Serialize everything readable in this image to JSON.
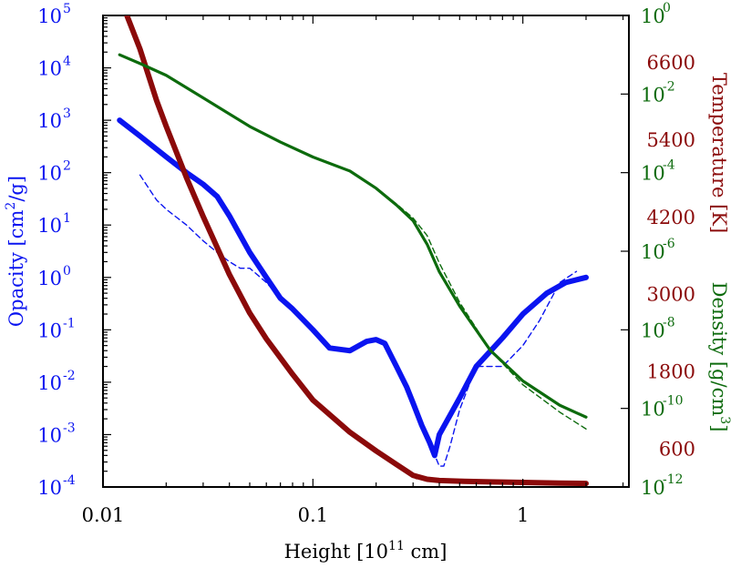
{
  "chart_data": {
    "type": "line",
    "xlabel_main": "Height [10",
    "xlabel_sup": "11",
    "xlabel_tail": " cm]",
    "x_scale": "log",
    "xlim": [
      0.01,
      3.2
    ],
    "x_ticks": [
      {
        "value": 0.01,
        "label": "0.01"
      },
      {
        "value": 0.1,
        "label": "0.1"
      },
      {
        "value": 1,
        "label": "1"
      }
    ],
    "axes": {
      "opacity": {
        "label_main": "Opacity [cm",
        "label_sup": "2",
        "label_tail": "/g]",
        "color": "#0a14f0",
        "scale": "log",
        "ylim": [
          0.0001,
          100000
        ],
        "ticks": [
          {
            "value": 0.0001,
            "base": "10",
            "exp": "-4"
          },
          {
            "value": 0.001,
            "base": "10",
            "exp": "-3"
          },
          {
            "value": 0.01,
            "base": "10",
            "exp": "-2"
          },
          {
            "value": 0.1,
            "base": "10",
            "exp": "-1"
          },
          {
            "value": 1,
            "base": "10",
            "exp": "0"
          },
          {
            "value": 10,
            "base": "10",
            "exp": "1"
          },
          {
            "value": 100,
            "base": "10",
            "exp": "2"
          },
          {
            "value": 1000,
            "base": "10",
            "exp": "3"
          },
          {
            "value": 10000,
            "base": "10",
            "exp": "4"
          },
          {
            "value": 100000,
            "base": "10",
            "exp": "5"
          }
        ]
      },
      "temperature": {
        "label": "Temperature [K]",
        "color": "#8b0a0a",
        "scale": "linear",
        "ylim": [
          0,
          7320
        ],
        "ticks": [
          {
            "value": 600,
            "label": "600"
          },
          {
            "value": 1800,
            "label": "1800"
          },
          {
            "value": 3000,
            "label": "3000"
          },
          {
            "value": 4200,
            "label": "4200"
          },
          {
            "value": 5400,
            "label": "5400"
          },
          {
            "value": 6600,
            "label": "6600"
          }
        ]
      },
      "density": {
        "label_main": "Density [g/cm",
        "label_sup": "3",
        "label_tail": "]",
        "color": "#0d6b0d",
        "scale": "log",
        "ylim": [
          1e-12,
          1
        ],
        "ticks": [
          {
            "value": 1e-12,
            "base": "10",
            "exp": "-12"
          },
          {
            "value": 1e-10,
            "base": "10",
            "exp": "-10"
          },
          {
            "value": 1e-08,
            "base": "10",
            "exp": "-8"
          },
          {
            "value": 1e-06,
            "base": "10",
            "exp": "-6"
          },
          {
            "value": 0.0001,
            "base": "10",
            "exp": "-4"
          },
          {
            "value": 0.01,
            "base": "10",
            "exp": "-2"
          },
          {
            "value": 1,
            "base": "10",
            "exp": "0"
          }
        ]
      }
    },
    "series": [
      {
        "axis": "opacity",
        "style": "solid",
        "weight": "thick",
        "x": [
          0.012,
          0.015,
          0.02,
          0.025,
          0.03,
          0.035,
          0.04,
          0.05,
          0.06,
          0.07,
          0.08,
          0.1,
          0.12,
          0.15,
          0.18,
          0.2,
          0.22,
          0.25,
          0.28,
          0.3,
          0.33,
          0.36,
          0.38,
          0.4,
          0.5,
          0.6,
          0.8,
          1.0,
          1.3,
          1.6,
          2.0
        ],
        "y": [
          1000,
          500,
          200,
          100,
          60,
          35,
          15,
          3,
          1.0,
          0.4,
          0.25,
          0.1,
          0.045,
          0.04,
          0.06,
          0.065,
          0.055,
          0.02,
          0.008,
          0.004,
          0.0015,
          0.0007,
          0.0004,
          0.001,
          0.005,
          0.02,
          0.07,
          0.2,
          0.5,
          0.8,
          1.0
        ]
      },
      {
        "axis": "opacity",
        "style": "dashed",
        "weight": "thin",
        "x": [
          0.015,
          0.018,
          0.02,
          0.025,
          0.03,
          0.035,
          0.04,
          0.045,
          0.05,
          0.06,
          0.07,
          0.08,
          0.1,
          0.12,
          0.15,
          0.18,
          0.2,
          0.22,
          0.25,
          0.28,
          0.3,
          0.35,
          0.4,
          0.42,
          0.45,
          0.5,
          0.6,
          0.7,
          0.8,
          1.0,
          1.2,
          1.5,
          1.8
        ],
        "y": [
          90,
          30,
          20,
          10,
          5,
          3,
          2,
          1.5,
          1.5,
          0.8,
          0.4,
          0.25,
          0.1,
          0.045,
          0.04,
          0.06,
          0.065,
          0.055,
          0.02,
          0.008,
          0.004,
          0.0009,
          0.00025,
          0.00025,
          0.0006,
          0.003,
          0.02,
          0.02,
          0.02,
          0.05,
          0.15,
          0.8,
          1.3
        ]
      },
      {
        "axis": "temperature",
        "style": "solid",
        "weight": "thick",
        "x": [
          0.013,
          0.015,
          0.018,
          0.02,
          0.025,
          0.03,
          0.04,
          0.05,
          0.06,
          0.08,
          0.1,
          0.15,
          0.2,
          0.25,
          0.3,
          0.35,
          0.4,
          0.5,
          0.7,
          1.0,
          1.5,
          2.0
        ],
        "y": [
          7320,
          6800,
          6000,
          5600,
          4800,
          4200,
          3300,
          2700,
          2300,
          1750,
          1350,
          850,
          560,
          350,
          180,
          120,
          100,
          90,
          80,
          70,
          60,
          55
        ]
      },
      {
        "axis": "temperature",
        "style": "dashed",
        "weight": "thin",
        "x": [
          0.013,
          0.015,
          0.018,
          0.02,
          0.025,
          0.03,
          0.04,
          0.05,
          0.06,
          0.08,
          0.1,
          0.15,
          0.2,
          0.25,
          0.28,
          0.31,
          0.35
        ],
        "y": [
          7320,
          6800,
          6000,
          5600,
          4800,
          4200,
          3300,
          2700,
          2300,
          1750,
          1350,
          850,
          560,
          330,
          240,
          130,
          120
        ]
      },
      {
        "axis": "density",
        "style": "solid",
        "weight": "medium",
        "x": [
          0.012,
          0.015,
          0.02,
          0.03,
          0.05,
          0.07,
          0.1,
          0.15,
          0.2,
          0.25,
          0.3,
          0.35,
          0.4,
          0.5,
          0.7,
          1.0,
          1.5,
          2.0
        ],
        "y": [
          0.1,
          0.06,
          0.03,
          0.008,
          0.0015,
          0.0006,
          0.00025,
          0.00011,
          4e-05,
          1.5e-05,
          6e-06,
          1.5e-06,
          3e-07,
          4e-08,
          3e-09,
          5e-10,
          1.2e-10,
          6e-11
        ]
      },
      {
        "axis": "density",
        "style": "dashed",
        "weight": "thin",
        "x": [
          0.012,
          0.015,
          0.02,
          0.03,
          0.05,
          0.07,
          0.1,
          0.15,
          0.2,
          0.25,
          0.3,
          0.35,
          0.4,
          0.5,
          0.7,
          1.0,
          1.5,
          2.0
        ],
        "y": [
          0.1,
          0.06,
          0.03,
          0.008,
          0.0015,
          0.0006,
          0.00025,
          0.00011,
          4e-05,
          1.6e-05,
          7e-06,
          2.5e-06,
          5e-07,
          5e-08,
          3e-09,
          4e-10,
          8e-11,
          3e-11
        ]
      }
    ]
  }
}
